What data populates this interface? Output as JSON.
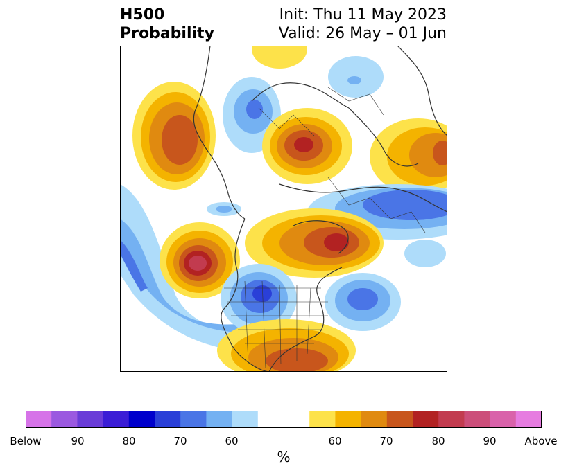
{
  "title": {
    "left_line1": "H500",
    "left_line2": "Probability",
    "right_line1": "Init: Thu 11 May 2023",
    "right_line2": "Valid: 26 May – 01 Jun"
  },
  "colorbar": {
    "unit": "%",
    "colors": [
      "#d673e8",
      "#9b59e0",
      "#6a3cd8",
      "#3b1dd6",
      "#0000cc",
      "#2a3fd8",
      "#4a75e6",
      "#74b1f2",
      "#aedcfa",
      "#ffffff",
      "#ffffff",
      "#fde24a",
      "#f4b300",
      "#e08a10",
      "#c8561c",
      "#b22222",
      "#c23b4f",
      "#cc4e7a",
      "#d962aa",
      "#e67ce0"
    ],
    "tick_labels": [
      "Below",
      "90",
      "80",
      "70",
      "60",
      "60",
      "70",
      "80",
      "90",
      "Above"
    ]
  },
  "legend_colors": {
    "above_60": "#fde24a",
    "above_65": "#f4b300",
    "above_70": "#e08a10",
    "above_75": "#c8561c",
    "above_80": "#b22222",
    "above_85": "#c23b4f",
    "above_90": "#cc4e7a",
    "below_60": "#aedcfa",
    "below_65": "#74b1f2",
    "below_70": "#4a75e6",
    "below_75": "#2a3fd8"
  }
}
